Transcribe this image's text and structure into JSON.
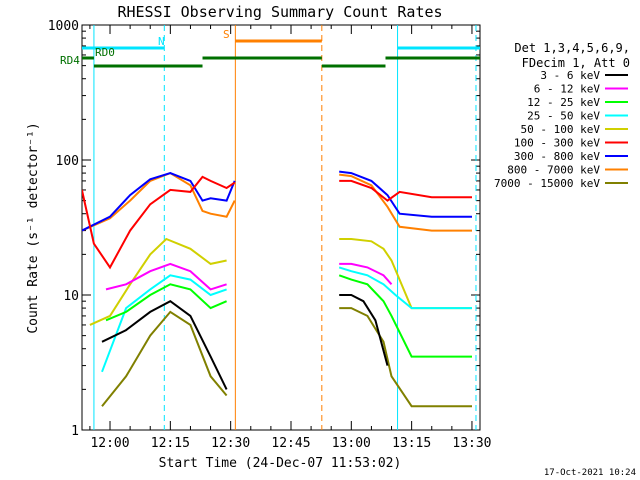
{
  "chart_data": {
    "type": "line",
    "title": "RHESSI Observing Summary Count Rates",
    "xlabel": "Start Time (24-Dec-07 11:53:02)",
    "ylabel": "Count Rate (s⁻¹ detector⁻¹)",
    "ylim": [
      1,
      1000
    ],
    "yscale": "log",
    "xlim": [
      "11:53:02",
      "13:32:00"
    ],
    "x_ticks": [
      "12:00",
      "12:15",
      "12:30",
      "12:45",
      "13:00",
      "13:15",
      "13:30"
    ],
    "y_ticks": [
      "1",
      "10",
      "100",
      "1000"
    ],
    "timestamp": "17-Oct-2021 10:24",
    "legend": {
      "placement": "right",
      "header": [
        "Det 1,3,4,5,6,9,",
        "FDecim 1, Att 0"
      ]
    },
    "annotations": [
      {
        "label": "N",
        "color": "#00e5ff"
      },
      {
        "label": "S",
        "color": "#ff8000"
      },
      {
        "label": "RD0",
        "color": "#007000"
      },
      {
        "label": "RD4",
        "color": "#007000"
      }
    ],
    "flag_bars": [
      {
        "label": "N",
        "color": "#00e5ff",
        "intervals": [
          [
            "11:53:02",
            "12:13:30"
          ],
          [
            "13:11:30",
            "13:32:00"
          ]
        ]
      },
      {
        "label": "S",
        "color": "#ff8000",
        "intervals": [
          [
            "12:31:10",
            "12:52:40"
          ]
        ]
      },
      {
        "label": "RD0",
        "color": "#007000",
        "intervals": [
          [
            "11:53:02",
            "11:56:00"
          ],
          [
            "12:23:00",
            "12:52:40"
          ],
          [
            "13:08:30",
            "13:32:00"
          ]
        ]
      },
      {
        "label": "RD4",
        "color": "#007000",
        "intervals": [
          [
            "11:56:00",
            "12:23:00"
          ],
          [
            "12:52:40",
            "13:08:30"
          ]
        ]
      }
    ],
    "vertical_markers": [
      {
        "time": "11:56:00",
        "color": "#00e5ff",
        "style": "solid"
      },
      {
        "time": "12:13:30",
        "color": "#00e5ff",
        "style": "dashed"
      },
      {
        "time": "12:31:10",
        "color": "#ff8000",
        "style": "solid"
      },
      {
        "time": "12:52:40",
        "color": "#ff8000",
        "style": "dashed"
      },
      {
        "time": "13:11:30",
        "color": "#00e5ff",
        "style": "solid"
      },
      {
        "time": "13:31:00",
        "color": "#00e5ff",
        "style": "dashed"
      }
    ],
    "series": [
      {
        "name": "3 - 6 keV",
        "color": "#000000",
        "segments": [
          {
            "x": [
              "11:58",
              "12:04",
              "12:10",
              "12:15",
              "12:20",
              "12:25",
              "12:29"
            ],
            "y": [
              4.5,
              5.5,
              7.5,
              9,
              7,
              3.5,
              2
            ]
          },
          {
            "x": [
              "12:57",
              "13:00",
              "13:03",
              "13:06",
              "13:09"
            ],
            "y": [
              10,
              10,
              9,
              6.5,
              3
            ]
          }
        ]
      },
      {
        "name": "6 - 12 keV",
        "color": "#ff00ff",
        "segments": [
          {
            "x": [
              "11:59",
              "12:04",
              "12:10",
              "12:15",
              "12:20",
              "12:25",
              "12:29"
            ],
            "y": [
              11,
              12,
              15,
              17,
              15,
              11,
              12
            ]
          },
          {
            "x": [
              "12:57",
              "13:00",
              "13:04",
              "13:08",
              "13:10"
            ],
            "y": [
              17,
              17,
              16,
              14,
              12
            ]
          }
        ]
      },
      {
        "name": "12 - 25 keV",
        "color": "#00ff00",
        "segments": [
          {
            "x": [
              "11:59",
              "12:04",
              "12:10",
              "12:15",
              "12:20",
              "12:25",
              "12:29"
            ],
            "y": [
              6.5,
              7.5,
              10,
              12,
              11,
              8,
              9
            ]
          },
          {
            "x": [
              "12:57",
              "13:00",
              "13:04",
              "13:08",
              "13:10",
              "13:15",
              "13:30"
            ],
            "y": [
              14,
              13,
              12,
              9,
              7,
              3.5,
              3.5
            ]
          }
        ]
      },
      {
        "name": "25 - 50 keV",
        "color": "#00ffff",
        "segments": [
          {
            "x": [
              "11:58",
              "12:04",
              "12:10",
              "12:15",
              "12:20",
              "12:25",
              "12:29"
            ],
            "y": [
              2.7,
              8,
              11,
              14,
              13,
              10,
              11
            ]
          },
          {
            "x": [
              "12:57",
              "13:00",
              "13:04",
              "13:08",
              "13:11",
              "13:15",
              "13:30"
            ],
            "y": [
              16,
              15,
              14,
              12,
              10,
              8,
              8
            ]
          }
        ]
      },
      {
        "name": "50 - 100 keV",
        "color": "#d0d000",
        "segments": [
          {
            "x": [
              "11:55",
              "12:00",
              "12:05",
              "12:10",
              "12:14",
              "12:20",
              "12:25",
              "12:29"
            ],
            "y": [
              6,
              7,
              12,
              20,
              26,
              22,
              17,
              18
            ]
          },
          {
            "x": [
              "12:57",
              "13:00",
              "13:05",
              "13:08",
              "13:10",
              "13:15",
              "13:30"
            ],
            "y": [
              26,
              26,
              25,
              22,
              18,
              8,
              8
            ]
          }
        ]
      },
      {
        "name": "100 - 300 keV",
        "color": "#ff0000",
        "segments": [
          {
            "x": [
              "11:53",
              "11:56",
              "12:00",
              "12:05",
              "12:10",
              "12:15",
              "12:20",
              "12:23",
              "12:25",
              "12:29",
              "12:31"
            ],
            "y": [
              60,
              24,
              16,
              30,
              47,
              60,
              58,
              75,
              70,
              62,
              68
            ]
          },
          {
            "x": [
              "12:57",
              "13:00",
              "13:05",
              "13:09",
              "13:12",
              "13:20",
              "13:30"
            ],
            "y": [
              70,
              70,
              62,
              50,
              58,
              53,
              53
            ]
          }
        ]
      },
      {
        "name": "300 - 800 keV",
        "color": "#0000ff",
        "segments": [
          {
            "x": [
              "11:53",
              "12:00",
              "12:05",
              "12:10",
              "12:15",
              "12:20",
              "12:23",
              "12:25",
              "12:29",
              "12:31"
            ],
            "y": [
              30,
              38,
              55,
              72,
              80,
              70,
              50,
              52,
              50,
              70
            ]
          },
          {
            "x": [
              "12:57",
              "13:00",
              "13:05",
              "13:09",
              "13:12",
              "13:20",
              "13:30"
            ],
            "y": [
              82,
              80,
              70,
              55,
              40,
              38,
              38
            ]
          }
        ]
      },
      {
        "name": "800 - 7000 keV",
        "color": "#ff8000",
        "segments": [
          {
            "x": [
              "11:53",
              "12:00",
              "12:05",
              "12:10",
              "12:15",
              "12:20",
              "12:23",
              "12:25",
              "12:29",
              "12:31"
            ],
            "y": [
              30,
              37,
              50,
              70,
              80,
              65,
              42,
              40,
              38,
              50
            ]
          },
          {
            "x": [
              "12:57",
              "13:00",
              "13:05",
              "13:09",
              "13:12",
              "13:20",
              "13:30"
            ],
            "y": [
              78,
              76,
              65,
              45,
              32,
              30,
              30
            ]
          }
        ]
      },
      {
        "name": "7000 - 15000 keV",
        "color": "#808000",
        "segments": [
          {
            "x": [
              "11:58",
              "12:04",
              "12:10",
              "12:15",
              "12:20",
              "12:25",
              "12:29"
            ],
            "y": [
              1.5,
              2.5,
              5,
              7.5,
              6,
              2.5,
              1.8
            ]
          },
          {
            "x": [
              "12:57",
              "13:00",
              "13:04",
              "13:08",
              "13:10",
              "13:15",
              "13:30"
            ],
            "y": [
              8,
              8,
              7,
              4.5,
              2.5,
              1.5,
              1.5
            ]
          }
        ]
      }
    ]
  }
}
